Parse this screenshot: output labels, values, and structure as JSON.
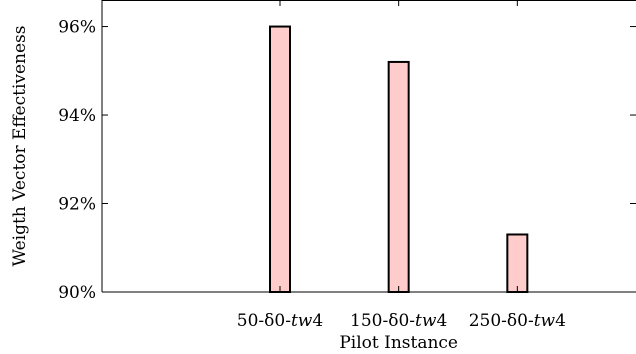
{
  "chart_data": {
    "type": "bar",
    "categories": [
      "50-δ0-tw4",
      "150-δ0-tw4",
      "250-δ0-tw4"
    ],
    "category_parts": [
      {
        "prefix": "50-δ0-",
        "italic": "tw",
        "suffix": "4"
      },
      {
        "prefix": "150-δ0-",
        "italic": "tw",
        "suffix": "4"
      },
      {
        "prefix": "250-δ0-",
        "italic": "tw",
        "suffix": "4"
      }
    ],
    "values": [
      96.0,
      95.2,
      91.3
    ],
    "xlabel": "Pilot Instance",
    "ylabel": "Weigth Vector Effectiveness",
    "ylim": [
      90,
      96.6
    ],
    "yticks": [
      90,
      92,
      94,
      96
    ],
    "ytick_labels": [
      "90%",
      "92%",
      "94%",
      "96%"
    ],
    "xlim": [
      -1.5,
      3.0
    ],
    "grid": false,
    "bar_color": "#ffcccc",
    "edge_color": "#000000"
  }
}
